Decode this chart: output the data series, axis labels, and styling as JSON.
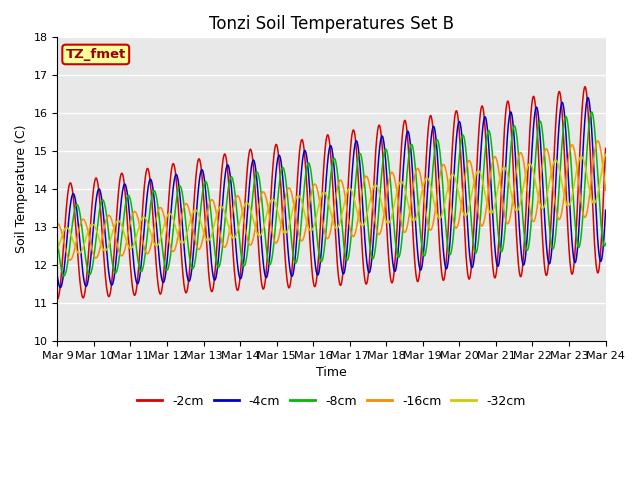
{
  "title": "Tonzi Soil Temperatures Set B",
  "xlabel": "Time",
  "ylabel": "Soil Temperature (C)",
  "ylim": [
    10.0,
    18.0
  ],
  "xlim_days": [
    0,
    15
  ],
  "yticks": [
    10.0,
    11.0,
    12.0,
    13.0,
    14.0,
    15.0,
    16.0,
    17.0,
    18.0
  ],
  "date_labels": [
    "Mar 9",
    "Mar 10",
    "Mar 11",
    "Mar 12",
    "Mar 13",
    "Mar 14",
    "Mar 15",
    "Mar 16",
    "Mar 17",
    "Mar 18",
    "Mar 19",
    "Mar 20",
    "Mar 21",
    "Mar 22",
    "Mar 23",
    "Mar 24"
  ],
  "date_tick_positions": [
    0,
    1,
    2,
    3,
    4,
    5,
    6,
    7,
    8,
    9,
    10,
    11,
    12,
    13,
    14,
    15
  ],
  "series": [
    {
      "label": "-2cm",
      "color": "#dd0000",
      "amp_start": 1.5,
      "amp_end": 2.5,
      "lag": 0.0
    },
    {
      "label": "-4cm",
      "color": "#0000cc",
      "amp_start": 1.2,
      "amp_end": 2.2,
      "lag": 0.08
    },
    {
      "label": "-8cm",
      "color": "#00bb00",
      "amp_start": 0.9,
      "amp_end": 1.8,
      "lag": 0.18
    },
    {
      "label": "-16cm",
      "color": "#ff8800",
      "amp_start": 0.5,
      "amp_end": 1.0,
      "lag": 0.35
    },
    {
      "label": "-32cm",
      "color": "#cccc00",
      "amp_start": 0.35,
      "amp_end": 0.65,
      "lag": 0.6
    }
  ],
  "base_temp_start": 12.6,
  "base_temp_end": 14.3,
  "freq_cycles_per_day": 1.42,
  "annotation_text": "TZ_fmet",
  "annotation_bg": "#ffff99",
  "annotation_edge": "#cc0000",
  "bg_color": "#e8e8e8",
  "grid_color": "#ffffff",
  "title_fontsize": 12,
  "label_fontsize": 9,
  "tick_fontsize": 8,
  "legend_fontsize": 9
}
